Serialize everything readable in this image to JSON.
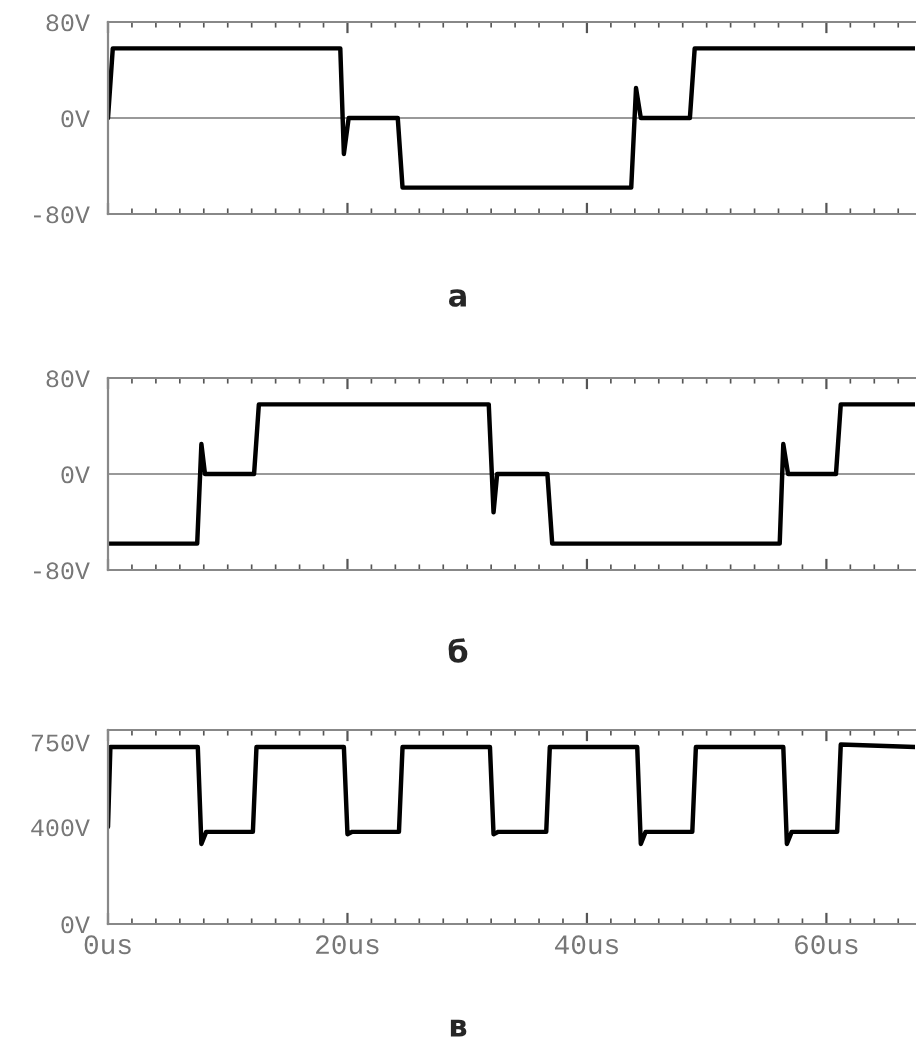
{
  "chart_data": [
    {
      "type": "line",
      "title": "а",
      "x": [
        0,
        0.4,
        19.4,
        19.7,
        20.1,
        24.2,
        24.6,
        43.7,
        44.1,
        44.5,
        48.6,
        49.0,
        67.4
      ],
      "series": [
        {
          "color": "#000000",
          "values": [
            0,
            58,
            58,
            -30,
            0,
            0,
            -58,
            -58,
            25,
            0,
            0,
            58,
            58
          ]
        }
      ],
      "xlim": [
        0,
        67.4
      ],
      "xticks": [
        {
          "value": 0,
          "label": null
        },
        {
          "value": 20,
          "label": null
        },
        {
          "value": 40,
          "label": null
        },
        {
          "value": 60,
          "label": null
        }
      ],
      "ylim": [
        -80,
        80
      ],
      "yticks": [
        {
          "value": -80,
          "label": "-80V"
        },
        {
          "value": 0,
          "label": "0V"
        },
        {
          "value": 80,
          "label": "80V"
        }
      ],
      "ref_lines": [
        {
          "axis": "y",
          "value": 0,
          "color": "#999999"
        }
      ],
      "tick_labels": "y",
      "grid": false,
      "legend": false
    },
    {
      "type": "line",
      "title": "б",
      "x": [
        0,
        7.45,
        7.8,
        8.1,
        12.2,
        12.6,
        31.8,
        32.2,
        32.5,
        36.7,
        37.1,
        56.1,
        56.4,
        56.8,
        60.8,
        61.2,
        67.4
      ],
      "series": [
        {
          "color": "#000000",
          "values": [
            -58,
            -58,
            25,
            0,
            0,
            58,
            58,
            -32,
            0,
            0,
            -58,
            -58,
            25,
            0,
            0,
            58,
            58
          ]
        }
      ],
      "xlim": [
        0,
        67.4
      ],
      "xticks": [
        {
          "value": 0,
          "label": null
        },
        {
          "value": 20,
          "label": null
        },
        {
          "value": 40,
          "label": null
        },
        {
          "value": 60,
          "label": null
        }
      ],
      "ylim": [
        -80,
        80
      ],
      "yticks": [
        {
          "value": -80,
          "label": "-80V"
        },
        {
          "value": 0,
          "label": "0V"
        },
        {
          "value": 80,
          "label": "80V"
        }
      ],
      "ref_lines": [
        {
          "axis": "y",
          "value": 0,
          "color": "#999999"
        }
      ],
      "tick_labels": "y",
      "grid": false,
      "legend": false
    },
    {
      "type": "line",
      "title": "в",
      "x": [
        0,
        0.2,
        7.5,
        7.8,
        8.2,
        12.1,
        12.4,
        19.7,
        20.0,
        20.4,
        24.3,
        24.6,
        31.9,
        32.2,
        32.6,
        36.6,
        36.9,
        44.2,
        44.5,
        44.9,
        48.8,
        49.1,
        56.4,
        56.7,
        57.1,
        60.9,
        61.2,
        67.4
      ],
      "series": [
        {
          "color": "#000000",
          "values": [
            400,
            730,
            730,
            330,
            380,
            380,
            730,
            730,
            370,
            380,
            380,
            730,
            730,
            370,
            380,
            380,
            730,
            730,
            330,
            380,
            380,
            730,
            730,
            330,
            380,
            380,
            740,
            730
          ]
        }
      ],
      "xlim": [
        0,
        67.4
      ],
      "xticks": [
        {
          "value": 0,
          "label": "0us"
        },
        {
          "value": 20,
          "label": "20us"
        },
        {
          "value": 40,
          "label": "40us"
        },
        {
          "value": 60,
          "label": "60us"
        }
      ],
      "ylim": [
        0,
        800
      ],
      "yticks": [
        {
          "value": 0,
          "label": "0V"
        },
        {
          "value": 400,
          "label": "400V"
        },
        {
          "value": 750,
          "label": "750V"
        }
      ],
      "grid": false,
      "legend": false
    }
  ]
}
